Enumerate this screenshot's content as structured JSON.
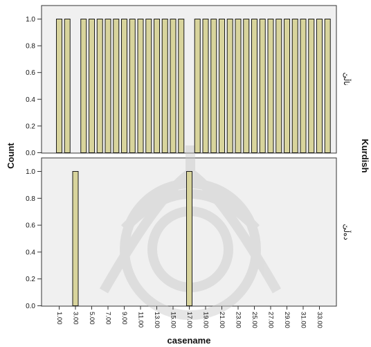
{
  "chart_data": {
    "type": "bar",
    "layout": "paneled histogram, two panels stacked vertically sharing the x axis",
    "xlabel": "casename",
    "ylabel": "Count",
    "panel_variable": "Kurdish",
    "ylim": [
      0,
      1.05
    ],
    "y_ticks": [
      "0.0",
      "0.2",
      "0.4",
      "0.6",
      "0.8",
      "1.0"
    ],
    "x_ticks": [
      "1.00",
      "3.00",
      "5.00",
      "7.00",
      "9.00",
      "11.00",
      "13.00",
      "15.00",
      "17.00",
      "19.00",
      "21.00",
      "23.00",
      "25.00",
      "27.00",
      "29.00",
      "31.00",
      "33.00"
    ],
    "categories": [
      1,
      2,
      3,
      4,
      5,
      6,
      7,
      8,
      9,
      10,
      11,
      12,
      13,
      14,
      15,
      16,
      17,
      18,
      19,
      20,
      21,
      22,
      23,
      24,
      25,
      26,
      27,
      28,
      29,
      30,
      31,
      32,
      33,
      34
    ],
    "panels": [
      {
        "label": "ناڵێ",
        "values": [
          1,
          1,
          0,
          1,
          1,
          1,
          1,
          1,
          1,
          1,
          1,
          1,
          1,
          1,
          1,
          1,
          0,
          1,
          1,
          1,
          1,
          1,
          1,
          1,
          1,
          1,
          1,
          1,
          1,
          1,
          1,
          1,
          1,
          1
        ]
      },
      {
        "label": "دەڵێ",
        "values": [
          0,
          0,
          1,
          0,
          0,
          0,
          0,
          0,
          0,
          0,
          0,
          0,
          0,
          0,
          0,
          0,
          1,
          0,
          0,
          0,
          0,
          0,
          0,
          0,
          0,
          0,
          0,
          0,
          0,
          0,
          0,
          0,
          0,
          0
        ]
      }
    ],
    "bar_fill": "#d8d49c",
    "bar_stroke": "#1a1a1a",
    "panel_bg": "#f0f0f0",
    "watermark_color": "#c8c8c8",
    "grid": false,
    "legend": "none"
  }
}
